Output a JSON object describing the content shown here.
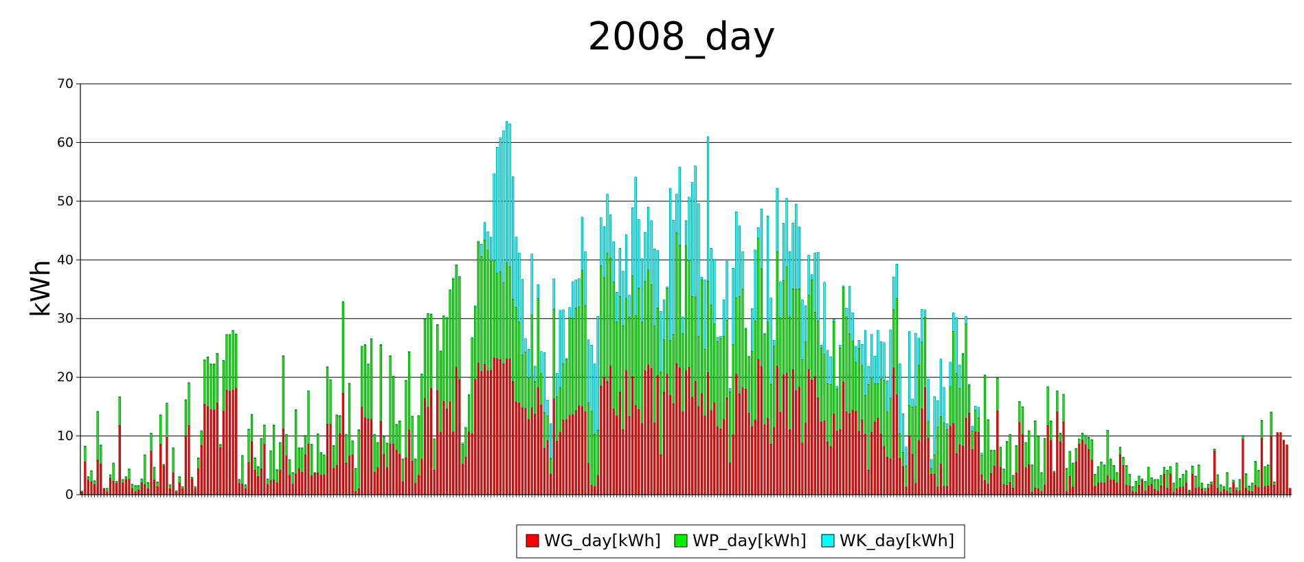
{
  "chart_data": {
    "type": "bar",
    "stacked": true,
    "title": "2008_day",
    "xlabel": "",
    "ylabel": "kWh",
    "ylim": [
      0,
      70
    ],
    "yticks": [
      "0",
      "10",
      "20",
      "30",
      "40",
      "50",
      "60",
      "70"
    ],
    "grid": true,
    "legend_position": "bottom-center",
    "x": "day 1 to day 366 of 2008",
    "series": [
      {
        "name": "WG_day[kWh]",
        "color": "#ff0000",
        "values": [
          0.4,
          5.6,
          2.5,
          2.2,
          1.7,
          5.9,
          5.2,
          1.0,
          0.5,
          2.8,
          2.3,
          1.9,
          11.8,
          2.0,
          2.6,
          2.6,
          1.0,
          0.5,
          0.8,
          2.0,
          1.7,
          1.0,
          7.4,
          2.5,
          1.4,
          8.6,
          4.9,
          9.8,
          1.0,
          3.7,
          0.4,
          2.0,
          1.0,
          10.0,
          11.8,
          2.6,
          1.0,
          4.4,
          8.4,
          15.4,
          15.0,
          14.5,
          14.4,
          15.6,
          8.0,
          14.2,
          17.8,
          17.6,
          17.8,
          18.1,
          1.9,
          1.8,
          1.0,
          5.5,
          9.0,
          4.2,
          3.1,
          4.4,
          8.6,
          1.7,
          2.4,
          2.5,
          2.0,
          4.2,
          11.2,
          6.6,
          3.3,
          1.8,
          3.5,
          4.4,
          3.8,
          6.8,
          8.6,
          3.2,
          3.6,
          3.7,
          3.3,
          3.4,
          12.0,
          12.0,
          4.5,
          5.0,
          10.4,
          17.3,
          5.4,
          6.6,
          6.8,
          0.5,
          1.0,
          14.9,
          13.1,
          12.9,
          12.8,
          3.8,
          4.6,
          12.5,
          6.9,
          4.6,
          8.6,
          8.6,
          7.6,
          6.9,
          2.2,
          6.3,
          11.0,
          5.7,
          1.9,
          3.3,
          6.0,
          16.4,
          14.9,
          18.1,
          4.2,
          17.7,
          10.6,
          15.9,
          14.6,
          15.8,
          10.7,
          21.7,
          19.6,
          5.2,
          6.4,
          10.7,
          10.4,
          19.6,
          22.4,
          21.0,
          22.2,
          21.1,
          21.2,
          23.3,
          23.2,
          23.0,
          22.3,
          23.1,
          23.1,
          19.3,
          15.8,
          15.6,
          14.8,
          14.7,
          12.8,
          14.8,
          13.7,
          18.2,
          15.3,
          7.9,
          9.2,
          3.5,
          16.3,
          9.1,
          10.6,
          12.7,
          12.8,
          13.5,
          13.6,
          14.3,
          15.1,
          15.0,
          14.1,
          5.3,
          1.6,
          1.4,
          3.3,
          18.5,
          20.0,
          19.3,
          21.9,
          14.6,
          13.4,
          17.5,
          11.1,
          21.1,
          13.3,
          20.1,
          15.2,
          14.5,
          12.1,
          21.1,
          22.1,
          21.5,
          12.2,
          20.3,
          6.8,
          17.5,
          20.5,
          16.9,
          15.5,
          22.3,
          21.6,
          14.1,
          21.1,
          21.7,
          16.6,
          19.3,
          15.0,
          17.2,
          13.4,
          20.8,
          14.3,
          15.6,
          11.6,
          11.2,
          12.8,
          16.5,
          5.4,
          10.2,
          20.5,
          17.2,
          18.2,
          18.0,
          13.9,
          11.6,
          12.7,
          23.0,
          21.8,
          11.9,
          13.0,
          8.6,
          11.4,
          21.9,
          14.0,
          20.4,
          20.7,
          11.1,
          21.3,
          17.7,
          18.3,
          8.8,
          12.2,
          21.3,
          19.5,
          20.1,
          16.5,
          12.4,
          12.6,
          9.0,
          8.2,
          13.7,
          10.8,
          11.1,
          19.2,
          14.1,
          13.8,
          14.4,
          14.2,
          10.8,
          12.7,
          10.3,
          4.2,
          10.6,
          12.4,
          13.0,
          10.3,
          8.2,
          6.4,
          6.1,
          21.6,
          17.0,
          6.2,
          4.8,
          1.3,
          10.0,
          6.9,
          1.9,
          9.2,
          14.6,
          18.2,
          9.6,
          3.5,
          3.5,
          1.3,
          5.2,
          1.4,
          1.4,
          11.7,
          12.1,
          7.0,
          8.5,
          8.3,
          13.0,
          13.9,
          7.7,
          10.7,
          10.6,
          3.4,
          2.4,
          1.8,
          3.6,
          4.9,
          14.3,
          4.6,
          1.7,
          1.6,
          2.1,
          1.1,
          3.7,
          12.3,
          10.2,
          4.6,
          5.1,
          0.4,
          1.1,
          1.0,
          0.5,
          1.6,
          11.8,
          9.2,
          3.7,
          14.1,
          9.0,
          12.4,
          0.5,
          3.1,
          1.3,
          5.6,
          8.6,
          9.3,
          8.5,
          7.7,
          5.9,
          1.4,
          2.0,
          2.0,
          2.0,
          3.2,
          2.5,
          2.5,
          2.0,
          6.8,
          5.0,
          1.6,
          1.5,
          0.5,
          0.4,
          1.6,
          2.4,
          0.6,
          1.5,
          1.8,
          0.9,
          0.6,
          1.5,
          3.5,
          1.1,
          3.5,
          0.4,
          1.0,
          1.2,
          1.3,
          2.0,
          0.5,
          3.5,
          1.1,
          1.2,
          1.0,
          0.5,
          1.1,
          1.7,
          7.4,
          1.1,
          0.4,
          0.9,
          0.6,
          0.2,
          2.0,
          0.7,
          0.6,
          9.4,
          1.1,
          0.6,
          0.5,
          1.6,
          1.2,
          9.6,
          1.4,
          1.5,
          10.0,
          1.6,
          10.6,
          10.6,
          9.3,
          8.5,
          1.1
        ]
      },
      {
        "name": "WP_day[kWh]",
        "color": "#00ee00",
        "values": [
          0.1,
          2.6,
          0.5,
          1.8,
          0.6,
          8.2,
          3.2,
          0.0,
          0.5,
          0.5,
          3.0,
          0.3,
          4.8,
          0.5,
          0.4,
          1.7,
          0.7,
          1.0,
          0.7,
          0.6,
          5.0,
          1.0,
          3.0,
          2.1,
          0.7,
          4.9,
          0.2,
          5.7,
          0.6,
          4.2,
          0.2,
          1.0,
          0.3,
          6.1,
          7.2,
          0.3,
          0.3,
          1.8,
          2.4,
          7.5,
          8.4,
          7.7,
          7.8,
          8.4,
          0.5,
          8.6,
          9.4,
          9.6,
          10.1,
          9.2,
          0.6,
          4.8,
          0.6,
          5.6,
          4.6,
          2.0,
          1.6,
          5.1,
          3.2,
          0.9,
          5.0,
          9.3,
          2.2,
          4.6,
          12.4,
          3.6,
          2.6,
          1.9,
          10.9,
          3.5,
          4.1,
          3.2,
          9.0,
          5.3,
          0.1,
          6.6,
          3.8,
          3.3,
          9.7,
          7.5,
          3.8,
          8.5,
          3.0,
          15.5,
          4.8,
          12.3,
          2.3,
          3.9,
          10.0,
          10.3,
          12.4,
          9.3,
          13.7,
          6.4,
          4.2,
          13.0,
          2.9,
          4.1,
          15.0,
          11.5,
          4.3,
          5.6,
          3.8,
          13.1,
          13.3,
          7.6,
          4.1,
          10.1,
          14.5,
          13.5,
          15.9,
          12.6,
          5.2,
          11.2,
          13.8,
          14.5,
          15.5,
          19.0,
          26.0,
          17.3,
          17.4,
          3.4,
          4.9,
          6.2,
          16.2,
          12.4,
          20.6,
          19.6,
          21.2,
          20.5,
          18.6,
          16.6,
          14.5,
          15.0,
          13.8,
          16.4,
          15.7,
          14.0,
          16.1,
          13.8,
          9.0,
          9.6,
          7.1,
          15.8,
          5.6,
          15.2,
          5.3,
          6.1,
          4.2,
          2.7,
          15.3,
          7.6,
          7.6,
          9.6,
          10.2,
          16.6,
          16.4,
          17.5,
          16.9,
          23.2,
          18.1,
          10.3,
          12.6,
          8.9,
          7.7,
          20.5,
          17.0,
          21.8,
          18.4,
          21.6,
          16.0,
          16.3,
          17.7,
          12.3,
          17.0,
          17.2,
          15.3,
          20.7,
          17.3,
          15.2,
          16.2,
          14.3,
          16.5,
          11.5,
          14.1,
          8.9,
          14.7,
          9.4,
          11.8,
          22.3,
          20.9,
          13.3,
          21.3,
          18.2,
          17.2,
          14.4,
          12.0,
          19.4,
          11.4,
          15.6,
          18.0,
          13.5,
          14.5,
          15.4,
          14.2,
          13.2,
          12.1,
          15.4,
          13.0,
          16.6,
          16.8,
          10.2,
          9.5,
          12.8,
          16.9,
          20.7,
          16.7,
          15.4,
          16.4,
          10.2,
          13.9,
          19.5,
          16.1,
          16.1,
          18.1,
          19.2,
          13.8,
          17.3,
          16.8,
          14.2,
          13.8,
          12.7,
          17.1,
          11.0,
          13.1,
          12.6,
          11.3,
          9.9,
          10.6,
          15.8,
          7.2,
          13.9,
          16.1,
          16.2,
          13.6,
          11.8,
          8.3,
          14.1,
          9.3,
          6.6,
          14.6,
          9.2,
          6.5,
          5.9,
          9.4,
          11.3,
          7.7,
          10.3,
          9.9,
          16.4,
          4.2,
          2.4,
          3.6,
          5.2,
          8.0,
          13.1,
          12.9,
          11.4,
          12.0,
          2.9,
          1.0,
          3.3,
          10.2,
          8.1,
          10.8,
          9.7,
          6.7,
          15.7,
          13.7,
          9.6,
          15.6,
          16.1,
          4.7,
          3.1,
          3.7,
          2.5,
          3.3,
          17.9,
          10.9,
          3.9,
          2.6,
          5.5,
          3.4,
          2.6,
          7.4,
          8.1,
          2.1,
          4.6,
          3.5,
          4.7,
          4.2,
          5.7,
          4.6,
          11.4,
          8.9,
          3.2,
          7.9,
          6.5,
          3.3,
          0.2,
          3.5,
          1.4,
          4.6,
          3.9,
          4.2,
          4.0,
          2.2,
          0.8,
          1.1,
          1.5,
          2.0,
          3.4,
          2.0,
          2.7,
          3.5,
          3.0,
          7.7,
          3.5,
          2.4,
          1.7,
          1.2,
          1.3,
          3.3,
          1.9,
          0.8,
          1.8,
          1.5,
          0.2,
          1.6,
          3.1,
          1.0,
          1.6,
          1.9,
          1.7,
          1.1,
          3.0,
          1.2,
          1.5,
          4.3,
          1.5,
          2.1,
          2.0,
          0.2,
          1.3,
          2.0,
          3.8,
          0.9,
          0.5,
          0.6,
          0.4,
          0.3,
          2.2,
          1.2,
          0.4,
          3.1,
          0.9,
          0.4,
          0.4,
          1.9,
          0.6,
          2.4,
          0.8,
          1.4,
          4.0,
          2.9,
          3.0,
          3.3,
          3.5,
          4.0,
          0.5
        ]
      },
      {
        "name": "WK_day[kWh]",
        "color": "#00ffff",
        "values": [
          0.1,
          0.1,
          0.1,
          0.1,
          0.1,
          0.1,
          0.1,
          0.1,
          0.1,
          0.1,
          0.1,
          0.1,
          0.1,
          0.1,
          0.1,
          0.1,
          0.1,
          0.1,
          0.1,
          0.1,
          0.1,
          0.1,
          0.1,
          0.1,
          0.1,
          0.1,
          0.1,
          0.1,
          0.1,
          0.1,
          0.1,
          0.1,
          0.1,
          0.1,
          0.1,
          0.1,
          0.1,
          0.1,
          0.1,
          0.1,
          0.1,
          0.1,
          0.1,
          0.1,
          0.1,
          0.1,
          0.1,
          0.1,
          0.1,
          0.1,
          0.1,
          0.1,
          0.1,
          0.1,
          0.1,
          0.1,
          0.1,
          0.1,
          0.1,
          0.1,
          0.1,
          0.1,
          0.1,
          0.1,
          0.1,
          0.1,
          0.1,
          0.1,
          0.1,
          0.1,
          0.1,
          0.1,
          0.1,
          0.1,
          0.1,
          0.1,
          0.1,
          0.1,
          0.1,
          0.1,
          0.1,
          0.1,
          0.1,
          0.1,
          0.1,
          0.1,
          0.1,
          0.1,
          0.1,
          0.1,
          0.1,
          0.1,
          0.1,
          0.1,
          0.1,
          0.1,
          0.1,
          0.1,
          0.1,
          0.1,
          0.1,
          0.1,
          0.1,
          0.1,
          0.1,
          0.1,
          0.1,
          0.1,
          0.1,
          0.1,
          0.1,
          0.1,
          0.1,
          0.1,
          0.1,
          0.1,
          0.1,
          0.1,
          0.2,
          0.2,
          0.2,
          0.2,
          0.2,
          0.2,
          0.2,
          0.2,
          0.2,
          2.1,
          3.0,
          3.2,
          4.1,
          14.8,
          21.5,
          22.8,
          25.9,
          24.1,
          24.4,
          20.9,
          12.0,
          11.8,
          12.9,
          2.3,
          4.9,
          10.4,
          2.6,
          2.4,
          3.8,
          10.2,
          2.7,
          5.9,
          5.2,
          4.0,
          13.2,
          9.2,
          0.2,
          1.8,
          6.3,
          4.8,
          4.8,
          9.1,
          9.2,
          10.8,
          11.3,
          12.0,
          19.4,
          8.2,
          8.7,
          10.1,
          7.4,
          6.9,
          5.1,
          8.2,
          9.3,
          10.9,
          3.7,
          11.6,
          23.6,
          11.7,
          10.8,
          8.4,
          10.7,
          10.9,
          13.2,
          9.8,
          10.3,
          6.8,
          0.2,
          25.9,
          19.5,
          6.6,
          13.3,
          2.9,
          4.3,
          10.8,
          19.4,
          22.3,
          22.6,
          0.5,
          11.8,
          24.6,
          9.7,
          11.0,
          0.7,
          0.4,
          6.2,
          10.1,
          0.6,
          13.0,
          14.7,
          12.0,
          6.4,
          0.2,
          0.2,
          7.3,
          12.1,
          1.8,
          10.2,
          0.2,
          18.1,
          14.7,
          1.0,
          10.8,
          6.2,
          9.7,
          11.7,
          11.1,
          11.2,
          14.5,
          10.5,
          10.2,
          6.2,
          6.8,
          0.9,
          10.1,
          11.7,
          0.5,
          12.3,
          5.7,
          4.7,
          0.4,
          0.5,
          0.5,
          0.3,
          1.5,
          8.1,
          4.8,
          2.8,
          1.4,
          3.6,
          11.1,
          3.1,
          7.5,
          4.7,
          9.1,
          6.4,
          6.4,
          5.3,
          11.7,
          5.6,
          5.9,
          11.9,
          6.6,
          3.2,
          12.6,
          1.4,
          12.5,
          4.6,
          5.6,
          1.3,
          7.2,
          1.5,
          9.9,
          4.5,
          9.8,
          6.1,
          1.0,
          4.2,
          3.2,
          9.5,
          4.0,
          0.2,
          1.3,
          0.2,
          0.9,
          0.7,
          1.8,
          0.4,
          0.1,
          0.1,
          0.1,
          0.1,
          0.1,
          0.1,
          0.1,
          0.1,
          0.1,
          0.1,
          0.1,
          0.1,
          0.1,
          0.1,
          0.1,
          0.1,
          0.1,
          0.1,
          0.1,
          0.1,
          0.1,
          0.1,
          0.1,
          0.1,
          0.1,
          0.1,
          0.1,
          0.1,
          0.1,
          0.1,
          0.1,
          0.1,
          0.1,
          0.1,
          0.1,
          0.1,
          0.1,
          0.1,
          0.1,
          0.1,
          0.1,
          0.1,
          0.1,
          0.1,
          0.1,
          0.1,
          0.1,
          0.1,
          0.1,
          0.1,
          0.1,
          0.1,
          0.1,
          0.1,
          0.1,
          0.1,
          0.1,
          0.1,
          0.1,
          0.1,
          0.1,
          0.1,
          0.1,
          0.1,
          0.1,
          0.1,
          0.1,
          0.1,
          0.1,
          0.1,
          0.1,
          0.1,
          0.1,
          0.1,
          0.1,
          0.1,
          0.1,
          0.1,
          0.1,
          0.1,
          0.1,
          0.1,
          0.1,
          0.1,
          0.1,
          0.1,
          0.1,
          0.1,
          0.1,
          0.1,
          0.1,
          0.1,
          0.1,
          0.1,
          0.1,
          0.1,
          0.1,
          0.1,
          0.1,
          0.1,
          0.1,
          0.1,
          0.1,
          0.1,
          0.1,
          0.1,
          0.1,
          0.1,
          0.1,
          0.1,
          0.1,
          0.1
        ]
      }
    ]
  }
}
